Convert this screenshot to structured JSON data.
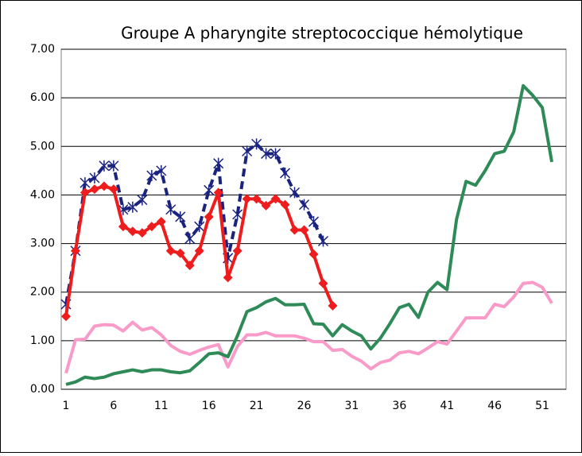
{
  "chart_data": {
    "type": "line",
    "title": "Groupe A pharyngite streptococcique hémolytique",
    "x": [
      1,
      2,
      3,
      4,
      5,
      6,
      7,
      8,
      9,
      10,
      11,
      12,
      13,
      14,
      15,
      16,
      17,
      18,
      19,
      20,
      21,
      22,
      23,
      24,
      25,
      26,
      27,
      28,
      29,
      30,
      31,
      32,
      33,
      34,
      35,
      36,
      37,
      38,
      39,
      40,
      41,
      42,
      43,
      44,
      45,
      46,
      47,
      48,
      49,
      50,
      51,
      52
    ],
    "xlim": [
      0.5,
      53.5
    ],
    "xticks": [
      1,
      6,
      11,
      16,
      21,
      26,
      31,
      36,
      41,
      46,
      51
    ],
    "ylim": [
      0,
      7
    ],
    "yticks": [
      {
        "value": 0,
        "label": "0.00"
      },
      {
        "value": 1,
        "label": "1.00"
      },
      {
        "value": 2,
        "label": "2.00"
      },
      {
        "value": 3,
        "label": "3.00"
      },
      {
        "value": 4,
        "label": "4.00"
      },
      {
        "value": 5,
        "label": "5.00"
      },
      {
        "value": 6,
        "label": "6.00"
      },
      {
        "value": 7,
        "label": "7.00"
      }
    ],
    "grid": true,
    "series": [
      {
        "color": "#f99ac8",
        "marker": "none",
        "dash": false,
        "values": [
          0.33,
          1.02,
          1.03,
          1.3,
          1.33,
          1.32,
          1.2,
          1.38,
          1.22,
          1.27,
          1.12,
          0.9,
          0.78,
          0.72,
          0.8,
          0.87,
          0.92,
          0.46,
          0.88,
          1.12,
          1.12,
          1.17,
          1.1,
          1.1,
          1.1,
          1.05,
          0.98,
          0.98,
          0.8,
          0.82,
          0.68,
          0.58,
          0.42,
          0.55,
          0.6,
          0.75,
          0.78,
          0.73,
          0.85,
          0.98,
          0.93,
          1.2,
          1.47,
          1.47,
          1.47,
          1.75,
          1.7,
          1.9,
          2.18,
          2.2,
          2.1,
          1.77
        ]
      },
      {
        "color": "#2e8b57",
        "marker": "none",
        "dash": false,
        "values": [
          0.1,
          0.15,
          0.25,
          0.22,
          0.25,
          0.32,
          0.36,
          0.4,
          0.36,
          0.4,
          0.4,
          0.36,
          0.34,
          0.38,
          0.55,
          0.73,
          0.75,
          0.67,
          1.1,
          1.6,
          1.68,
          1.8,
          1.87,
          1.74,
          1.74,
          1.75,
          1.35,
          1.34,
          1.1,
          1.33,
          1.2,
          1.1,
          0.83,
          1.05,
          1.35,
          1.68,
          1.75,
          1.48,
          2.0,
          2.2,
          2.05,
          3.5,
          4.28,
          4.2,
          4.5,
          4.85,
          4.9,
          5.3,
          6.25,
          6.05,
          5.8,
          4.68
        ]
      },
      {
        "color": "#1a237e",
        "marker": "star",
        "dash": true,
        "values": [
          1.75,
          2.85,
          4.25,
          4.35,
          4.6,
          4.6,
          3.7,
          3.75,
          3.9,
          4.4,
          4.5,
          3.7,
          3.55,
          3.1,
          3.35,
          4.1,
          4.65,
          2.7,
          3.6,
          4.9,
          5.05,
          4.85,
          4.85,
          4.45,
          4.05,
          3.8,
          3.45,
          3.05,
          null,
          null,
          null,
          null,
          null,
          null,
          null,
          null,
          null,
          null,
          null,
          null,
          null,
          null,
          null,
          null,
          null,
          null,
          null,
          null,
          null,
          null,
          null,
          null
        ]
      },
      {
        "color": "#ee1c1c",
        "marker": "diamond",
        "dash": false,
        "values": [
          1.5,
          2.85,
          4.05,
          4.12,
          4.18,
          4.12,
          3.35,
          3.25,
          3.22,
          3.35,
          3.45,
          2.85,
          2.8,
          2.55,
          2.85,
          3.55,
          4.05,
          2.3,
          2.85,
          3.92,
          3.92,
          3.78,
          3.92,
          3.8,
          3.28,
          3.28,
          2.78,
          2.18,
          1.72,
          null,
          null,
          null,
          null,
          null,
          null,
          null,
          null,
          null,
          null,
          null,
          null,
          null,
          null,
          null,
          null,
          null,
          null,
          null,
          null,
          null,
          null,
          null
        ]
      }
    ]
  }
}
